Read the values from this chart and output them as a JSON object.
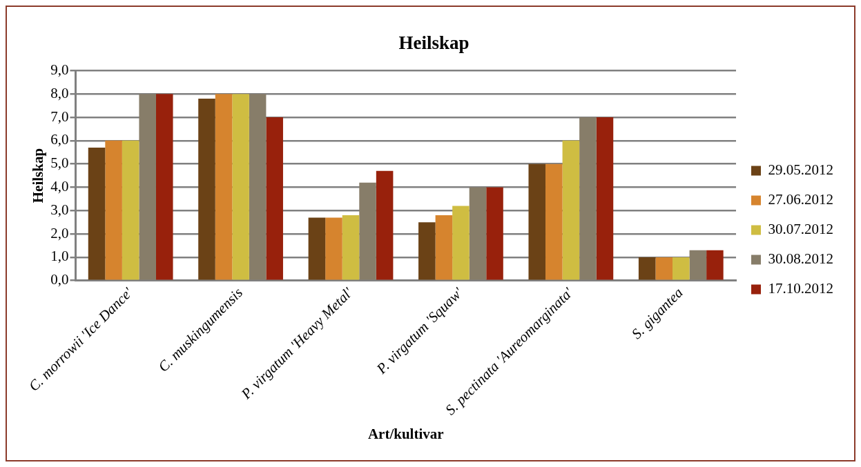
{
  "chart_data": {
    "type": "bar",
    "title": "Heilskap",
    "xlabel": "Art/kultivar",
    "ylabel": "Heilskap",
    "categories": [
      "C. morrowii 'Ice Dance'",
      "C. muskingumensis",
      "P. virgatum 'Heavy Metal'",
      "P. virgatum 'Squaw'",
      "S. pectinata 'Aureomarginata'",
      "S. gigantea"
    ],
    "series": [
      {
        "name": "29.05.2012",
        "color": "#6b4216",
        "values": [
          5.7,
          7.8,
          2.7,
          2.5,
          5.0,
          1.0
        ]
      },
      {
        "name": "27.06.2012",
        "color": "#d6842e",
        "values": [
          6.0,
          8.0,
          2.7,
          2.8,
          5.0,
          1.0
        ]
      },
      {
        "name": "30.07.2012",
        "color": "#cfbd42",
        "values": [
          6.0,
          8.0,
          2.8,
          3.2,
          6.0,
          1.0
        ]
      },
      {
        "name": "30.08.2012",
        "color": "#877d69",
        "values": [
          8.0,
          8.0,
          4.2,
          4.0,
          7.0,
          1.3
        ]
      },
      {
        "name": "17.10.2012",
        "color": "#98210c",
        "values": [
          8.0,
          7.0,
          4.7,
          4.0,
          7.0,
          1.3
        ]
      }
    ],
    "ylim": [
      0,
      9
    ],
    "yticks": [
      {
        "value": 0,
        "label": "0,0"
      },
      {
        "value": 1,
        "label": "1,0"
      },
      {
        "value": 2,
        "label": "2,0"
      },
      {
        "value": 3,
        "label": "3,0"
      },
      {
        "value": 4,
        "label": "4,0"
      },
      {
        "value": 5,
        "label": "5,0"
      },
      {
        "value": 6,
        "label": "6,0"
      },
      {
        "value": 7,
        "label": "7,0"
      },
      {
        "value": 8,
        "label": "8,0"
      },
      {
        "value": 9,
        "label": "9,0"
      }
    ],
    "grid": "y",
    "legend": "right"
  }
}
